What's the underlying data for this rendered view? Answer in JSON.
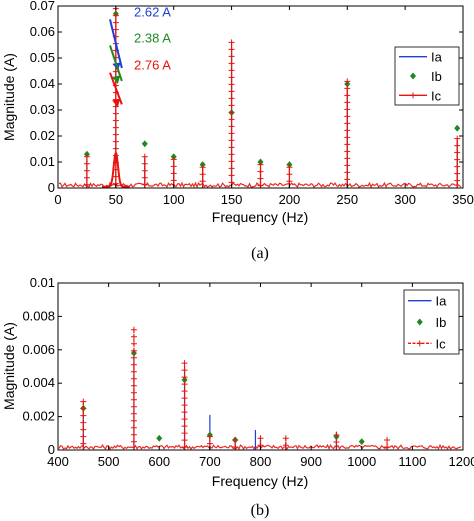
{
  "chart_data": [
    {
      "type": "line",
      "panel_caption": "(a)",
      "xlabel": "Frequency (Hz)",
      "ylabel": "Magnitude (A)",
      "xlim": [
        0,
        350
      ],
      "ylim": [
        0,
        0.07
      ],
      "x_ticks": [
        0,
        50,
        100,
        150,
        200,
        250,
        300,
        350
      ],
      "x_tick_labels": [
        "0",
        "50",
        "100",
        "150",
        "200",
        "250",
        "300",
        "350"
      ],
      "y_ticks": [
        0,
        0.01,
        0.02,
        0.03,
        0.04,
        0.05,
        0.06,
        0.07
      ],
      "y_tick_labels": [
        "0",
        "0.01",
        "0.02",
        "0.03",
        "0.04",
        "0.05",
        "0.06",
        "0.07"
      ],
      "grid": false,
      "legend_position": "top-right",
      "series": [
        {
          "name": "Ia",
          "color": "#1f3fd8",
          "marker": "none",
          "style": "solid",
          "points": [
            [
              25,
              0.011
            ],
            [
              50,
              0.068
            ],
            [
              75,
              0.011
            ],
            [
              100,
              0.01
            ],
            [
              125,
              0.008
            ],
            [
              150,
              0.054
            ],
            [
              175,
              0.008
            ],
            [
              200,
              0.007
            ],
            [
              250,
              0.038
            ],
            [
              345,
              0.018
            ]
          ]
        },
        {
          "name": "Ib",
          "color": "#1f8a1f",
          "marker": "diamond",
          "style": "none",
          "points": [
            [
              25,
              0.013
            ],
            [
              50,
              0.067
            ],
            [
              75,
              0.017
            ],
            [
              100,
              0.012
            ],
            [
              125,
              0.009
            ],
            [
              150,
              0.029
            ],
            [
              175,
              0.01
            ],
            [
              200,
              0.009
            ],
            [
              250,
              0.04
            ],
            [
              345,
              0.023
            ]
          ]
        },
        {
          "name": "Ic",
          "color": "#e8140c",
          "marker": "plus",
          "style": "solid",
          "points": [
            [
              25,
              0.012
            ],
            [
              50,
              0.069
            ],
            [
              75,
              0.012
            ],
            [
              100,
              0.011
            ],
            [
              125,
              0.008
            ],
            [
              150,
              0.056
            ],
            [
              175,
              0.009
            ],
            [
              200,
              0.008
            ],
            [
              250,
              0.041
            ],
            [
              345,
              0.019
            ]
          ]
        }
      ],
      "annotations": [
        {
          "text": "2.62 A",
          "color": "#1f3fd8",
          "x": 50,
          "y": 0.045
        },
        {
          "text": "2.38 A",
          "color": "#1f8a1f",
          "x": 50,
          "y": 0.04
        },
        {
          "text": "2.76 A",
          "color": "#e8140c",
          "x": 50,
          "y": 0.031
        }
      ]
    },
    {
      "type": "line",
      "panel_caption": "(b)",
      "xlabel": "Frequency (Hz)",
      "ylabel": "Magnitude (A)",
      "xlim": [
        400,
        1200
      ],
      "ylim": [
        0,
        0.01
      ],
      "x_ticks": [
        400,
        500,
        600,
        700,
        800,
        900,
        1000,
        1100,
        1200
      ],
      "x_tick_labels": [
        "400",
        "500",
        "600",
        "700",
        "800",
        "900",
        "1000",
        "1100",
        "1200"
      ],
      "y_ticks": [
        0,
        0.002,
        0.004,
        0.006,
        0.008,
        0.01
      ],
      "y_tick_labels": [
        "0",
        "0.002",
        "0.004",
        "0.006",
        "0.008",
        "0.01"
      ],
      "grid": false,
      "legend_position": "top-right",
      "series": [
        {
          "name": "Ia",
          "color": "#1f3fd8",
          "marker": "none",
          "style": "solid",
          "points": [
            [
              450,
              0.0024
            ],
            [
              550,
              0.006
            ],
            [
              650,
              0.0048
            ],
            [
              700,
              0.0021
            ],
            [
              750,
              0.0006
            ],
            [
              790,
              0.0012
            ],
            [
              800,
              0.0006
            ],
            [
              850,
              0.0005
            ],
            [
              950,
              0.0011
            ]
          ]
        },
        {
          "name": "Ib",
          "color": "#1f8a1f",
          "marker": "diamond",
          "style": "none",
          "points": [
            [
              450,
              0.0025
            ],
            [
              550,
              0.0058
            ],
            [
              600,
              0.0007
            ],
            [
              650,
              0.0042
            ],
            [
              700,
              0.0009
            ],
            [
              750,
              0.0006
            ],
            [
              950,
              0.0008
            ],
            [
              1000,
              0.0005
            ]
          ]
        },
        {
          "name": "Ic",
          "color": "#e8140c",
          "marker": "plus",
          "style": "dashed",
          "points": [
            [
              450,
              0.0029
            ],
            [
              550,
              0.0072
            ],
            [
              650,
              0.0052
            ],
            [
              700,
              0.0008
            ],
            [
              750,
              0.0006
            ],
            [
              800,
              0.0007
            ],
            [
              850,
              0.0007
            ],
            [
              950,
              0.0009
            ],
            [
              1050,
              0.0006
            ]
          ]
        }
      ]
    }
  ]
}
